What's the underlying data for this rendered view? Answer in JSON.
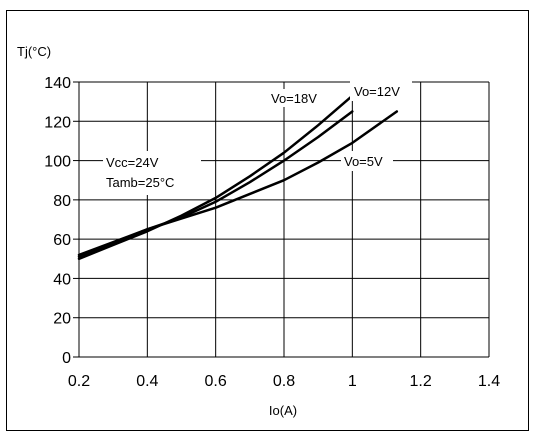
{
  "chart_data": {
    "type": "line",
    "title": "",
    "xlabel": "Io(A)",
    "ylabel": "Tj(°C)",
    "xlim": [
      0.2,
      1.4
    ],
    "ylim": [
      0,
      140
    ],
    "x_ticks": [
      "0.2",
      "0.4",
      "0.6",
      "0.8",
      "1",
      "1.2",
      "1.4"
    ],
    "y_ticks": [
      "0",
      "20",
      "40",
      "60",
      "80",
      "100",
      "120",
      "140"
    ],
    "grid": true,
    "conditions": [
      "Vcc=24V",
      "Tamb=25°C"
    ],
    "series": [
      {
        "name": "Vo=18V",
        "x": [
          0.2,
          0.3,
          0.4,
          0.5,
          0.6,
          0.7,
          0.8,
          0.9,
          1.0
        ],
        "y": [
          50,
          57,
          64,
          72,
          81,
          92,
          104,
          118,
          133
        ]
      },
      {
        "name": "Vo=12V",
        "x": [
          0.2,
          0.3,
          0.4,
          0.5,
          0.6,
          0.7,
          0.8,
          0.9,
          1.0
        ],
        "y": [
          51,
          58,
          65,
          71,
          79,
          89,
          100,
          112,
          125
        ]
      },
      {
        "name": "Vo=5V",
        "x": [
          0.2,
          0.4,
          0.6,
          0.8,
          0.9,
          1.0,
          1.13
        ],
        "y": [
          52,
          65,
          76,
          90,
          99,
          109,
          125
        ]
      }
    ],
    "series_labels_text": [
      "Vo=18V",
      "Vo=12V",
      "Vo=5V"
    ]
  }
}
